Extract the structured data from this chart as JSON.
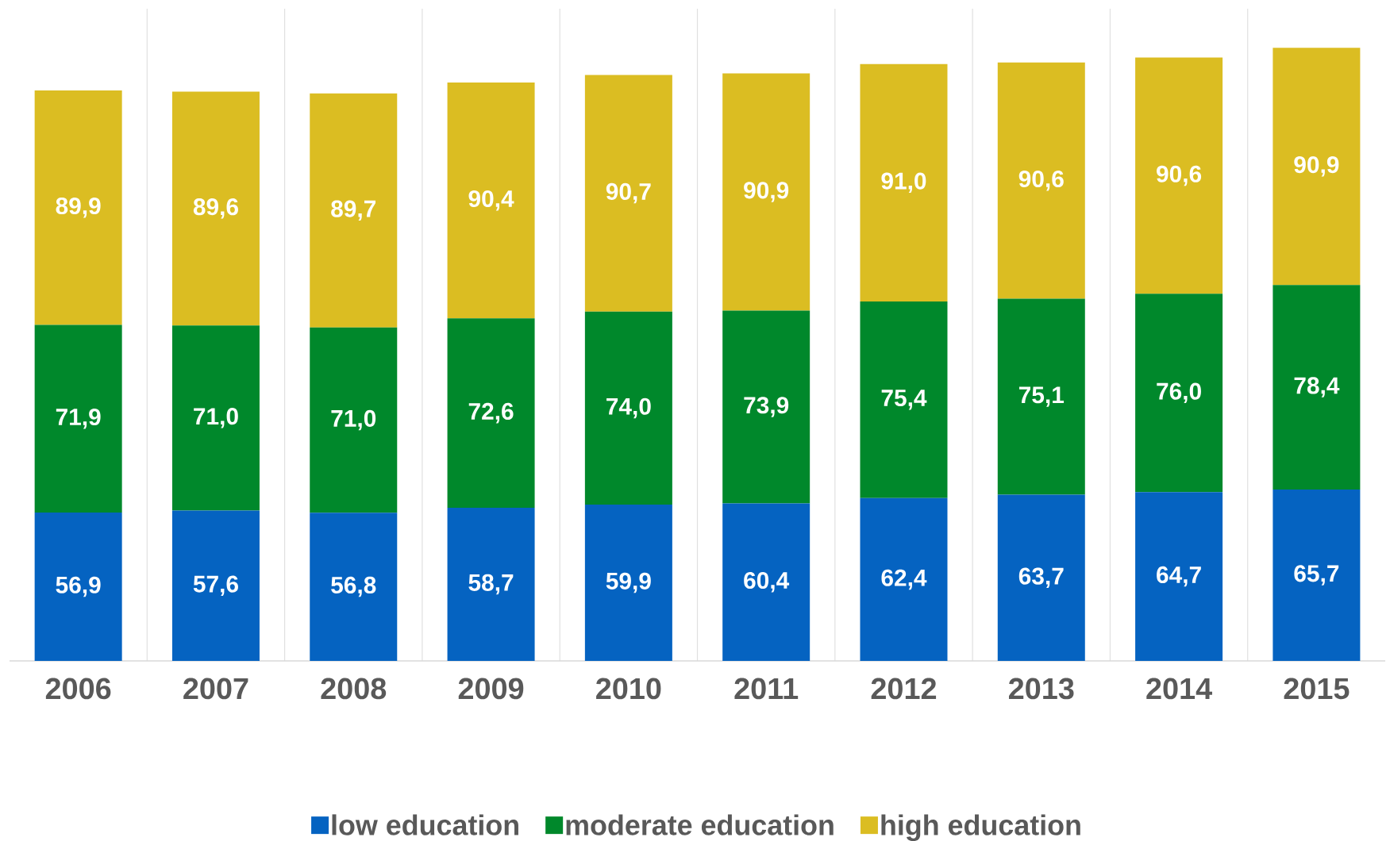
{
  "chart_data": {
    "type": "bar",
    "stacked": true,
    "categories": [
      "2006",
      "2007",
      "2008",
      "2009",
      "2010",
      "2011",
      "2012",
      "2013",
      "2014",
      "2015"
    ],
    "ylim": [
      0,
      250
    ],
    "grid": "x",
    "tick_labels": "x",
    "legend": "bottom",
    "series": [
      {
        "name": "low education",
        "color": "#0563c1",
        "values": [
          56.9,
          57.6,
          56.8,
          58.7,
          59.9,
          60.4,
          62.4,
          63.7,
          64.7,
          65.7
        ],
        "value_labels": [
          "56,9",
          "57,6",
          "56,8",
          "58,7",
          "59,9",
          "60,4",
          "62,4",
          "63,7",
          "64,7",
          "65,7"
        ]
      },
      {
        "name": "moderate education",
        "color": "#00882b",
        "values": [
          71.9,
          71.0,
          71.0,
          72.6,
          74.0,
          73.9,
          75.4,
          75.1,
          76.0,
          78.4
        ],
        "value_labels": [
          "71,9",
          "71,0",
          "71,0",
          "72,6",
          "74,0",
          "73,9",
          "75,4",
          "75,1",
          "76,0",
          "78,4"
        ]
      },
      {
        "name": "high education",
        "color": "#dbbd22",
        "values": [
          89.9,
          89.6,
          89.7,
          90.4,
          90.7,
          90.9,
          91.0,
          90.6,
          90.6,
          90.9
        ],
        "value_labels": [
          "89,9",
          "89,6",
          "89,7",
          "90,4",
          "90,7",
          "90,9",
          "91,0",
          "90,6",
          "90,6",
          "90,9"
        ]
      }
    ]
  }
}
